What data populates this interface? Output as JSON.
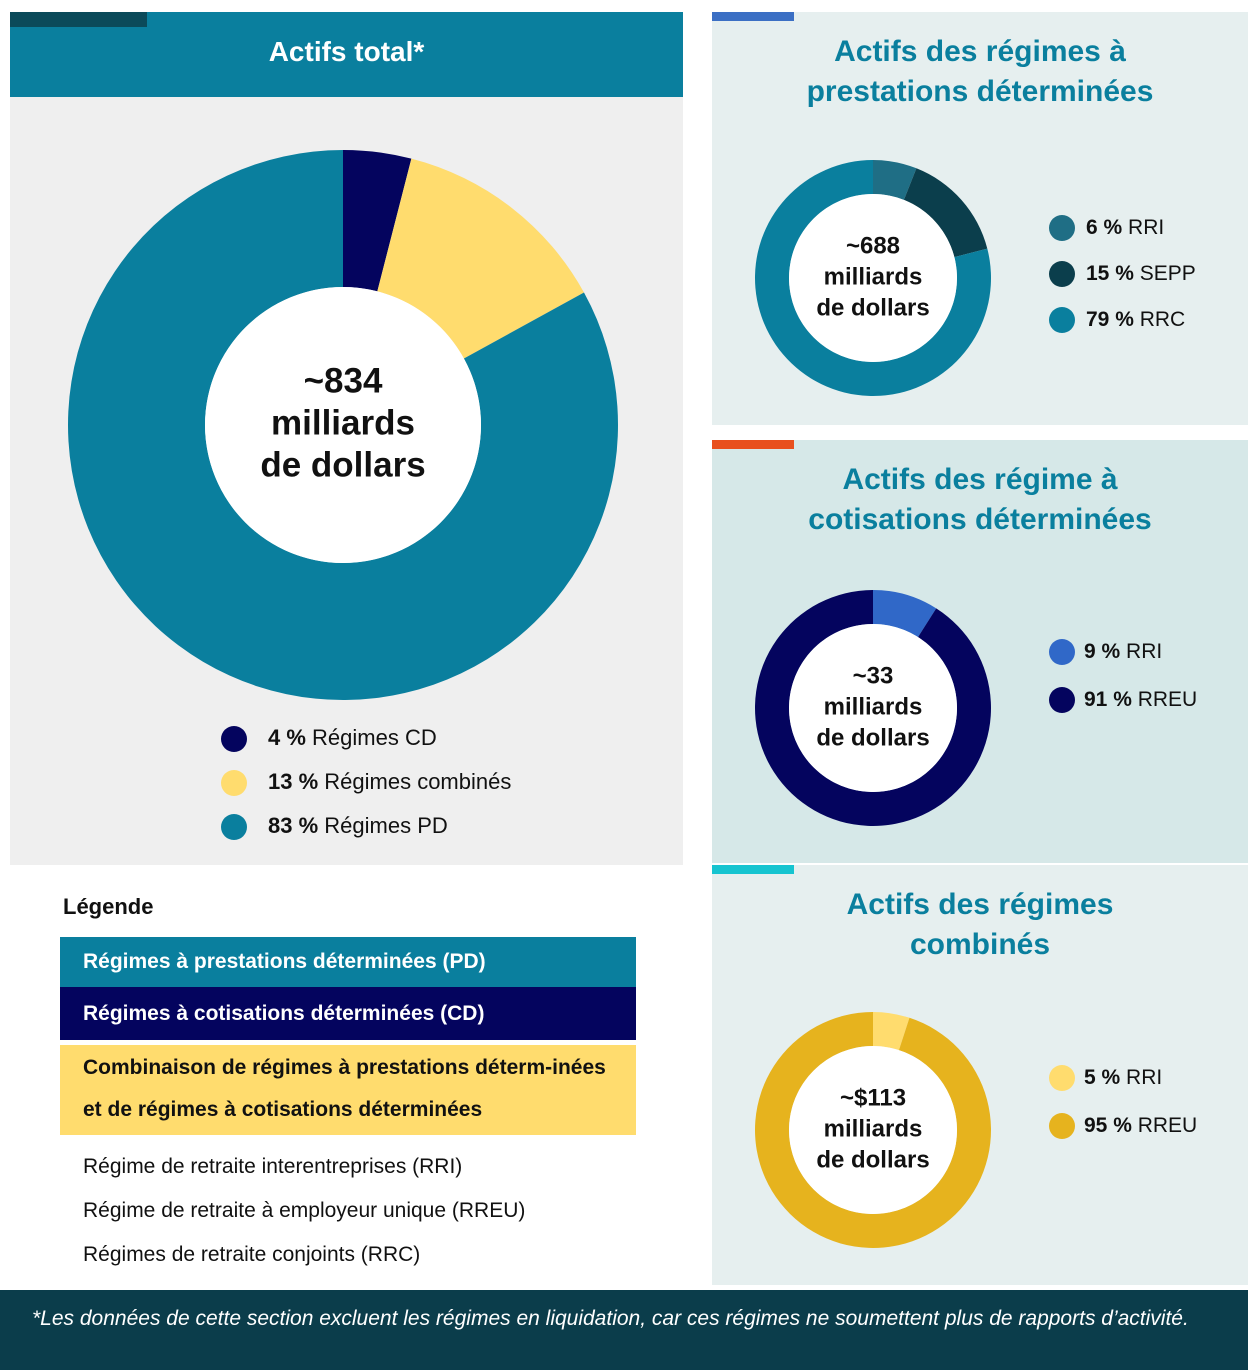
{
  "chart_data": [
    {
      "type": "donut",
      "title": "Actifs total*",
      "center_label": [
        "~834",
        "milliards",
        "de dollars"
      ],
      "categories": [
        "Régimes CD",
        "Régimes combinés",
        "Régimes PD"
      ],
      "values": [
        4,
        13,
        83
      ],
      "value_labels": [
        "4 %",
        "13 %",
        "83 %"
      ],
      "colors": [
        "#04045e",
        "#ffdc6e",
        "#0a7f9e"
      ]
    },
    {
      "type": "donut",
      "title": "Actifs des régimes à prestations déterminées",
      "center_label": [
        "~688",
        "milliards",
        "de dollars"
      ],
      "categories": [
        "RRI",
        "SEPP",
        "RRC"
      ],
      "values": [
        6,
        15,
        79
      ],
      "value_labels": [
        "6 %",
        "15 %",
        "79 %"
      ],
      "colors": [
        "#1f6e85",
        "#0b3e4c",
        "#0a7f9e"
      ]
    },
    {
      "type": "donut",
      "title": "Actifs des régime à cotisations déterminées",
      "center_label": [
        "~33",
        "milliards",
        "de dollars"
      ],
      "categories": [
        "RRI",
        "RREU"
      ],
      "values": [
        9,
        91
      ],
      "value_labels": [
        "9 %",
        "91 %"
      ],
      "colors": [
        "#3068c8",
        "#04045e"
      ]
    },
    {
      "type": "donut",
      "title": "Actifs des régimes combinés",
      "center_label": [
        "~$113",
        "milliards",
        "de dollars"
      ],
      "categories": [
        "RRI",
        "RREU"
      ],
      "values": [
        5,
        95
      ],
      "value_labels": [
        "5 %",
        "95 %"
      ],
      "colors": [
        "#ffdc6e",
        "#e6b31e"
      ]
    }
  ],
  "legend": {
    "title": "Légende",
    "items": [
      {
        "text": "Régimes à prestations déterminées (PD)",
        "color": "#0a7f9e"
      },
      {
        "text": "Régimes à cotisations déterminées (CD)",
        "color": "#04045e"
      },
      {
        "text": "Combinaison de régimes à prestations déterm-inées et de régimes à cotisations déterminées",
        "color": "#ffdc6e"
      }
    ],
    "abbreviations": [
      "Régime de retraite interentreprises (RRI)",
      "Régime de retraite à employeur unique (RREU)",
      "Régimes de retraite conjoints (RRC)"
    ]
  },
  "footnote": "*Les données de cette section excluent les régimes en liquidation, car ces régimes ne soumettent plus de rapports d’activité."
}
